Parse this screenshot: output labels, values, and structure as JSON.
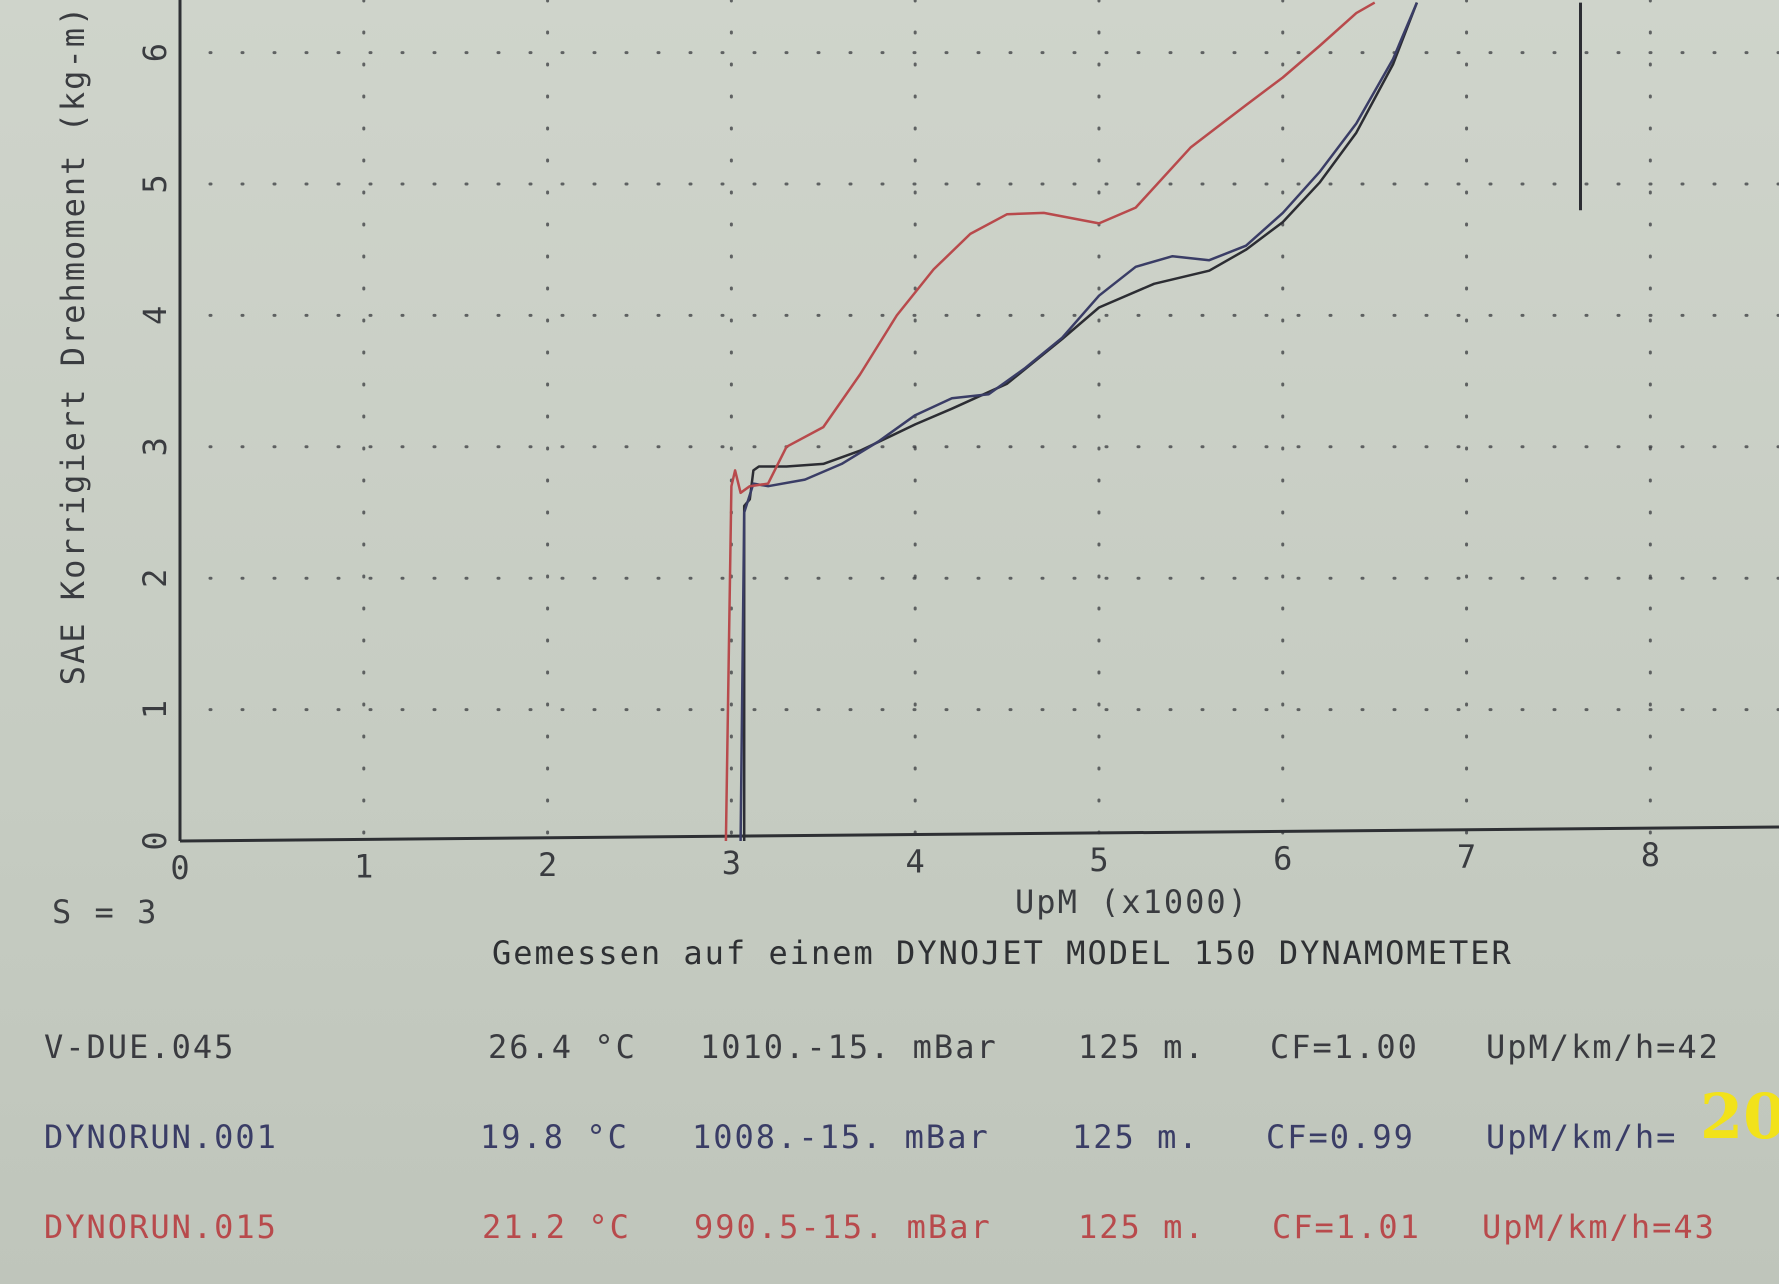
{
  "chart_data": {
    "type": "line",
    "title": "",
    "xlabel": "UpM (x1000)",
    "ylabel": "SAE Korrigiert Drehmoment (kg-m)",
    "xlim": [
      0,
      8.7
    ],
    "ylim": [
      0,
      6.4
    ],
    "x_ticks": [
      "0",
      "1",
      "2",
      "3",
      "4",
      "5",
      "6",
      "7",
      "8"
    ],
    "y_ticks": [
      "0",
      "1",
      "2",
      "3",
      "4",
      "5",
      "6"
    ],
    "grid": "dotted",
    "series": [
      {
        "name": "V-DUE.045",
        "color": "#2c2d33",
        "x": [
          3.07,
          3.07,
          3.1,
          3.12,
          3.15,
          3.3,
          3.5,
          3.7,
          3.85,
          4.0,
          4.2,
          4.5,
          4.8,
          5.0,
          5.3,
          5.6,
          5.8,
          6.0,
          6.2,
          6.4,
          6.6,
          6.73
        ],
        "y": [
          0,
          2.55,
          2.6,
          2.82,
          2.85,
          2.85,
          2.87,
          2.97,
          3.07,
          3.17,
          3.29,
          3.48,
          3.82,
          4.06,
          4.24,
          4.34,
          4.5,
          4.71,
          5.01,
          5.39,
          5.91,
          6.38
        ]
      },
      {
        "name": "DYNORUN.001",
        "color": "#3a3d66",
        "x": [
          3.05,
          3.07,
          3.12,
          3.2,
          3.4,
          3.6,
          3.8,
          4.0,
          4.2,
          4.4,
          4.6,
          4.8,
          5.0,
          5.2,
          5.4,
          5.6,
          5.8,
          6.0,
          6.2,
          6.4,
          6.6,
          6.73
        ],
        "y": [
          0,
          2.5,
          2.72,
          2.7,
          2.75,
          2.87,
          3.04,
          3.24,
          3.37,
          3.4,
          3.6,
          3.83,
          4.15,
          4.37,
          4.45,
          4.42,
          4.53,
          4.78,
          5.09,
          5.46,
          5.95,
          6.38
        ]
      },
      {
        "name": "DYNORUN.015",
        "color": "#b84a4c",
        "x": [
          2.97,
          3.0,
          3.02,
          3.05,
          3.1,
          3.2,
          3.3,
          3.5,
          3.7,
          3.9,
          4.1,
          4.3,
          4.5,
          4.7,
          5.0,
          5.2,
          5.5,
          5.8,
          6.0,
          6.2,
          6.4,
          6.5
        ],
        "y": [
          0,
          2.7,
          2.82,
          2.65,
          2.7,
          2.72,
          3.0,
          3.15,
          3.55,
          4.0,
          4.35,
          4.62,
          4.77,
          4.78,
          4.7,
          4.82,
          5.28,
          5.6,
          5.81,
          6.05,
          6.3,
          6.38
        ]
      }
    ],
    "annotation_vline": {
      "x": 7.62,
      "y": [
        4.8,
        6.38
      ],
      "color": "#2c2d33"
    }
  },
  "footer": {
    "s_label": "S = 3",
    "note": "Gemessen auf einem DYNOJET MODEL 150 DYNAMOMETER"
  },
  "runs": [
    {
      "file": "V-DUE.045",
      "temp": "26.4 °C",
      "pressure": "1010.-15. mBar",
      "alt": "125 m.",
      "cf": "CF=1.00",
      "ratio": "UpM/km/h=42",
      "color": "#3a3b40"
    },
    {
      "file": "DYNORUN.001",
      "temp": "19.8 °C",
      "pressure": "1008.-15. mBar",
      "alt": "125 m.",
      "cf": "CF=0.99",
      "ratio": "UpM/km/h=",
      "color": "#3a3d66"
    },
    {
      "file": "DYNORUN.015",
      "temp": "21.2 °C",
      "pressure": "990.5-15. mBar",
      "alt": "125 m.",
      "cf": "CF=1.01",
      "ratio": "UpM/km/h=43",
      "color": "#b84a4c"
    }
  ],
  "page_number": "20"
}
